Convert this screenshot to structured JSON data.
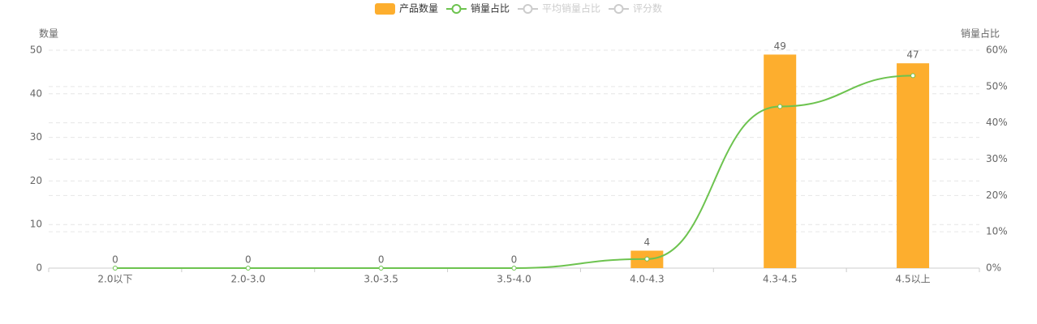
{
  "chart_data": {
    "type": "bar-line",
    "categories": [
      "2.0以下",
      "2.0-3.0",
      "3.0-3.5",
      "3.5-4.0",
      "4.0-4.3",
      "4.3-4.5",
      "4.5以上"
    ],
    "series": [
      {
        "name": "产品数量",
        "type": "bar",
        "color": "#fdae2e",
        "values": [
          0,
          0,
          0,
          0,
          4,
          49,
          47
        ]
      },
      {
        "name": "销量占比",
        "type": "line",
        "axis": "y2",
        "color": "#6dc34f",
        "smooth": true,
        "values": [
          0,
          0,
          0,
          0,
          2.5,
          44.5,
          53
        ]
      }
    ],
    "legend_inactive": [
      "平均销量占比",
      "评分数"
    ],
    "inactive_color": "#cccccc",
    "ylabel": "数量",
    "y2label": "销量占比",
    "ylim": [
      0,
      50
    ],
    "yticks": [
      0,
      10,
      20,
      30,
      40,
      50
    ],
    "y2lim": [
      0,
      60
    ],
    "y2ticks": [
      {
        "value": 0,
        "label": "0%"
      },
      {
        "value": 10,
        "label": "10%"
      },
      {
        "value": 20,
        "label": "20%"
      },
      {
        "value": 30,
        "label": "30%"
      },
      {
        "value": 40,
        "label": "40%"
      },
      {
        "value": 50,
        "label": "50%"
      },
      {
        "value": 60,
        "label": "60%"
      }
    ],
    "grid": true
  }
}
